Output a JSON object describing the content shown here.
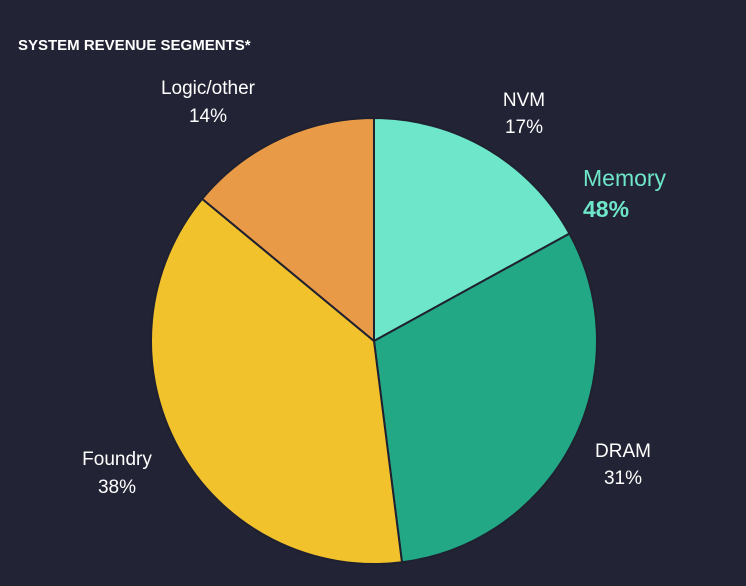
{
  "chart_data": {
    "type": "pie",
    "title": "SYSTEM REVENUE SEGMENTS*",
    "slices": [
      {
        "name": "NVM",
        "pct_label": "17%",
        "value": 17,
        "color": "#6ee6c9"
      },
      {
        "name": "DRAM",
        "pct_label": "31%",
        "value": 31,
        "color": "#22a885"
      },
      {
        "name": "Foundry",
        "pct_label": "38%",
        "value": 38,
        "color": "#f2c22c"
      },
      {
        "name": "Logic/other",
        "pct_label": "14%",
        "value": 14,
        "color": "#e89a46"
      }
    ],
    "group_annotation": {
      "name": "Memory",
      "pct_label": "48%",
      "value": 48,
      "color": "#6ee6c9"
    }
  }
}
